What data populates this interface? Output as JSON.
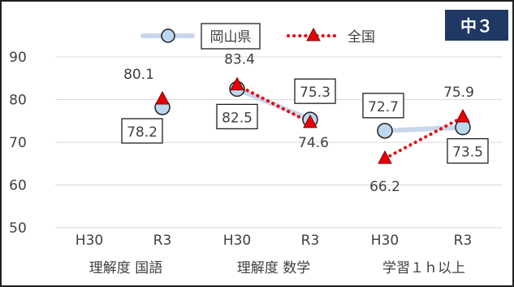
{
  "chart_data": {
    "type": "line",
    "badge": "中３",
    "ylim": [
      50,
      90
    ],
    "yticks": [
      50,
      60,
      70,
      80,
      90
    ],
    "grid": true,
    "legend_position": "top",
    "x": [
      "H30",
      "R3",
      "H30",
      "R3",
      "H30",
      "R3"
    ],
    "groups": [
      "理解度 国語",
      "理解度 数学",
      "学習１ｈ以上"
    ],
    "series": [
      {
        "name": "岡山県",
        "color": "#c8d7ea",
        "marker_fill": "#bdd7ee",
        "marker_stroke": "#1f1f1f",
        "segments": [
          [
            1,
            1
          ],
          [
            2,
            3
          ],
          [
            4,
            5
          ]
        ],
        "values": [
          null,
          78.2,
          82.5,
          75.3,
          72.7,
          73.5
        ]
      },
      {
        "name": "全国",
        "color": "#e8000b",
        "marker_fill": "#e8000b",
        "marker_stroke": "#7f0000",
        "segments": [
          [
            1,
            1
          ],
          [
            2,
            3
          ],
          [
            4,
            5
          ]
        ],
        "values": [
          null,
          80.1,
          83.4,
          74.6,
          66.2,
          75.9
        ]
      }
    ]
  }
}
